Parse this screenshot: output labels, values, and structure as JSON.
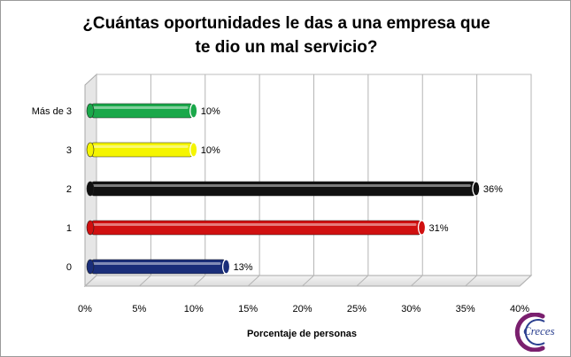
{
  "chart_data": {
    "type": "bar",
    "orientation": "horizontal",
    "title_lines": [
      "¿Cuántas oportunidades le das a una empresa que",
      "te dio un mal servicio?"
    ],
    "xlabel": "Porcentaje de personas",
    "ylabel": "",
    "categories": [
      "0",
      "1",
      "2",
      "3",
      "Más de 3"
    ],
    "values": [
      13,
      31,
      36,
      10,
      10
    ],
    "data_labels": [
      "13%",
      "31%",
      "36%",
      "10%",
      "10%"
    ],
    "bar_colors": [
      "#1a2e7a",
      "#d01010",
      "#111111",
      "#f5f500",
      "#1aa84a"
    ],
    "x_ticks": [
      "0%",
      "5%",
      "10%",
      "15%",
      "20%",
      "25%",
      "30%",
      "35%",
      "40%"
    ],
    "xlim": [
      0,
      40
    ],
    "grid": true,
    "legend": "none"
  },
  "logo": {
    "text": "Creces"
  }
}
